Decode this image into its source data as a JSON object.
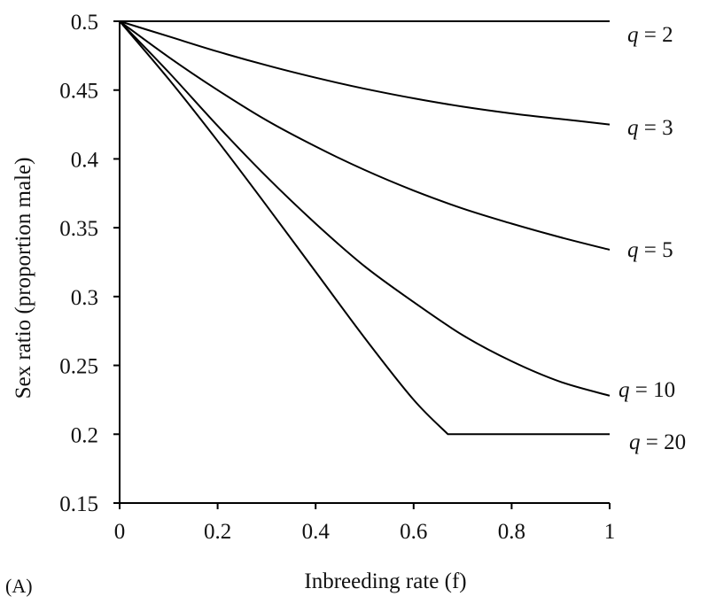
{
  "chart_data": {
    "type": "line",
    "panel_label": "(A)",
    "xlabel": "Inbreeding rate (f)",
    "ylabel": "Sex ratio (proportion male)",
    "xlim": [
      0,
      1
    ],
    "ylim": [
      0.15,
      0.5
    ],
    "x_ticks": [
      0,
      0.2,
      0.4,
      0.6,
      0.8,
      1
    ],
    "x_tick_labels": [
      "0",
      "0.2",
      "0.4",
      "0.6",
      "0.8",
      "1"
    ],
    "y_ticks": [
      0.15,
      0.2,
      0.25,
      0.3,
      0.35,
      0.4,
      0.45,
      0.5
    ],
    "y_tick_labels": [
      "0.15",
      "0.2",
      "0.25",
      "0.3",
      "0.35",
      "0.4",
      "0.45",
      "0.5"
    ],
    "grid": false,
    "series": [
      {
        "name": "q = 2",
        "q": 2,
        "x": [
          0,
          0.1,
          0.2,
          0.3,
          0.4,
          0.5,
          0.6,
          0.7,
          0.8,
          0.9,
          1
        ],
        "y": [
          0.5,
          0.5,
          0.5,
          0.5,
          0.5,
          0.5,
          0.5,
          0.5,
          0.5,
          0.5,
          0.5
        ]
      },
      {
        "name": "q = 3",
        "q": 3,
        "x": [
          0,
          0.1,
          0.2,
          0.3,
          0.4,
          0.5,
          0.6,
          0.7,
          0.8,
          0.9,
          1
        ],
        "y": [
          0.5,
          0.489,
          0.478,
          0.468,
          0.459,
          0.451,
          0.444,
          0.438,
          0.433,
          0.429,
          0.425
        ]
      },
      {
        "name": "q = 5",
        "q": 5,
        "x": [
          0,
          0.1,
          0.2,
          0.3,
          0.4,
          0.5,
          0.6,
          0.7,
          0.8,
          0.9,
          1
        ],
        "y": [
          0.5,
          0.474,
          0.45,
          0.428,
          0.409,
          0.392,
          0.377,
          0.364,
          0.353,
          0.343,
          0.334
        ]
      },
      {
        "name": "q = 10",
        "q": 10,
        "x": [
          0,
          0.1,
          0.2,
          0.3,
          0.4,
          0.5,
          0.6,
          0.7,
          0.8,
          0.9,
          1
        ],
        "y": [
          0.5,
          0.463,
          0.424,
          0.387,
          0.353,
          0.322,
          0.296,
          0.272,
          0.253,
          0.238,
          0.228
        ]
      },
      {
        "name": "q = 20",
        "q": 20,
        "x": [
          0,
          0.1,
          0.2,
          0.3,
          0.4,
          0.5,
          0.6,
          0.67,
          0.8,
          0.9,
          1
        ],
        "y": [
          0.5,
          0.458,
          0.413,
          0.366,
          0.318,
          0.27,
          0.225,
          0.2,
          0.2,
          0.2,
          0.2
        ]
      }
    ],
    "annotations": [
      "q = 2",
      "q = 3",
      "q = 5",
      "q = 10",
      "q = 20"
    ],
    "legend": "inline labels at right end of each curve"
  }
}
